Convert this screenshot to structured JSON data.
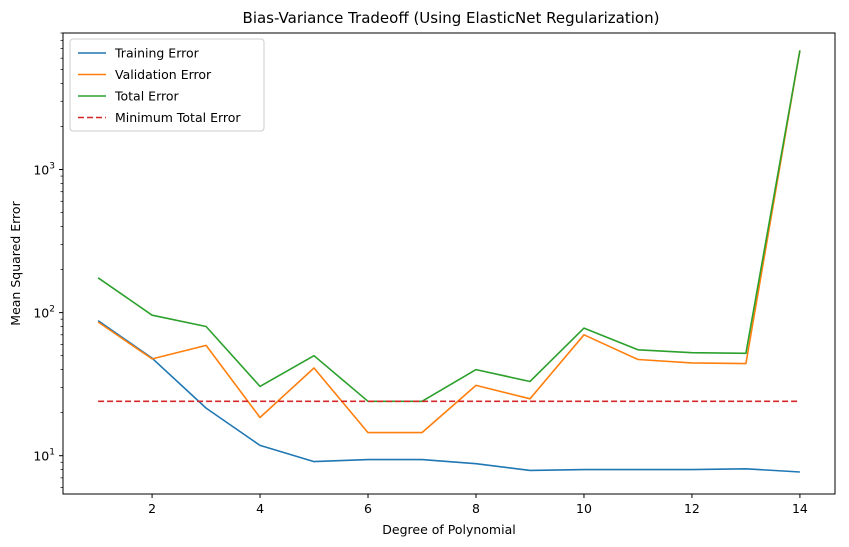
{
  "chart_data": {
    "type": "line",
    "title": "Bias-Variance Tradeoff (Using ElasticNet Regularization)",
    "xlabel": "Degree of Polynomial",
    "ylabel": "Mean Squared Error",
    "yscale": "log",
    "xlim": [
      0.35,
      14.65
    ],
    "ylim": [
      5.4,
      9000
    ],
    "xticks": [
      2,
      4,
      6,
      8,
      10,
      12,
      14
    ],
    "xtick_labels": [
      "2",
      "4",
      "6",
      "8",
      "10",
      "12",
      "14"
    ],
    "yticks": [
      10,
      100,
      1000
    ],
    "ytick_labels": [
      {
        "base": "10",
        "exp": "1"
      },
      {
        "base": "10",
        "exp": "2"
      },
      {
        "base": "10",
        "exp": "3"
      }
    ],
    "grid": false,
    "legend_position": "top-left",
    "x": [
      1,
      2,
      3,
      4,
      5,
      6,
      7,
      8,
      9,
      10,
      11,
      12,
      13,
      14
    ],
    "series": [
      {
        "name": "Training Error",
        "color": "#1f77b4",
        "style": "solid",
        "values": [
          88,
          48,
          21.5,
          11.8,
          9.1,
          9.4,
          9.4,
          8.8,
          7.9,
          8.0,
          8.0,
          8.0,
          8.1,
          7.7
        ]
      },
      {
        "name": "Validation Error",
        "color": "#ff7f0e",
        "style": "solid",
        "values": [
          86,
          47.5,
          59,
          18.5,
          41,
          14.5,
          14.5,
          31,
          25,
          70,
          47,
          44.5,
          44,
          6800
        ]
      },
      {
        "name": "Total Error",
        "color": "#2ca02c",
        "style": "solid",
        "values": [
          175,
          96,
          80,
          30.5,
          50,
          24,
          24,
          40,
          33,
          78,
          55,
          52.5,
          52,
          6800
        ]
      },
      {
        "name": "Minimum Total Error",
        "color": "#d62728",
        "style": "dashed",
        "values": [
          24,
          24,
          24,
          24,
          24,
          24,
          24,
          24,
          24,
          24,
          24,
          24,
          24,
          24
        ]
      }
    ]
  }
}
